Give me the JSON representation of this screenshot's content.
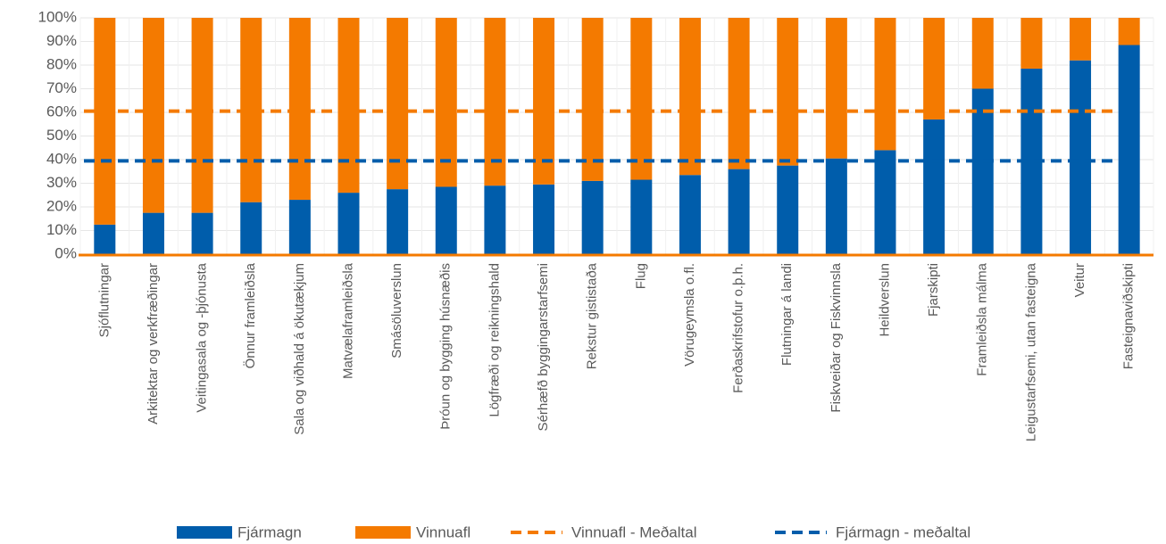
{
  "chart_data": {
    "type": "stacked_bar_percent",
    "categories": [
      "Sjóflutningar",
      "Arkitektar og verkfræðingar",
      "Veitingasala og -þjónusta",
      "Önnur framleiðsla",
      "Sala og viðhald á ökutækjum",
      "Matvælaframleiðsla",
      "Smásöluverslun",
      "Þróun og bygging húsnæðis",
      "Lögfræði og reikningshald",
      "Sérhæfð byggingarstarfsemi",
      "Rekstur gististaða",
      "Flug",
      "Vörugeymsla o.fl.",
      "Ferðaskrifstofur o.þ.h.",
      "Flutningar á landi",
      "Fiskveiðar og Fiskvinnsla",
      "Heildverslun",
      "Fjarskipti",
      "Framleiðsla málma",
      "Leigustarfsemi, utan fasteigna",
      "Veitur",
      "Fasteignaviðskipti"
    ],
    "series": [
      {
        "name": "Fjármagn",
        "color": "#005dab",
        "values": [
          12.5,
          17.5,
          17.5,
          22,
          23,
          26,
          27.5,
          28.5,
          29,
          29.5,
          31,
          31.5,
          33.5,
          36,
          37.5,
          40.5,
          44,
          57,
          70,
          78.5,
          82,
          88.5
        ]
      },
      {
        "name": "Vinnuafl",
        "color": "#f47a00",
        "values": [
          87.5,
          82.5,
          82.5,
          78,
          77,
          74,
          72.5,
          71.5,
          71,
          70.5,
          69,
          68.5,
          66.5,
          64,
          62.5,
          59.5,
          56,
          43,
          30,
          21.5,
          18,
          11.5
        ]
      },
      {
        "name": "Vinnuafl - Meðaltal",
        "color": "#f47a00",
        "type": "line",
        "dashed": true,
        "value": 60.5
      },
      {
        "name": "Fjármagn - meðaltal",
        "color": "#005dab",
        "type": "line",
        "dashed": true,
        "value": 39.5
      }
    ],
    "ylim": [
      0,
      100
    ],
    "yticks": [
      {
        "value": 0,
        "label": "0%"
      },
      {
        "value": 10,
        "label": "10%"
      },
      {
        "value": 20,
        "label": "20%"
      },
      {
        "value": 30,
        "label": "30%"
      },
      {
        "value": 40,
        "label": "40%"
      },
      {
        "value": 50,
        "label": "50%"
      },
      {
        "value": 60,
        "label": "60%"
      },
      {
        "value": 70,
        "label": "70%"
      },
      {
        "value": 80,
        "label": "80%"
      },
      {
        "value": 90,
        "label": "90%"
      },
      {
        "value": 100,
        "label": "100%"
      }
    ],
    "grid": true,
    "legend": "bottom"
  }
}
